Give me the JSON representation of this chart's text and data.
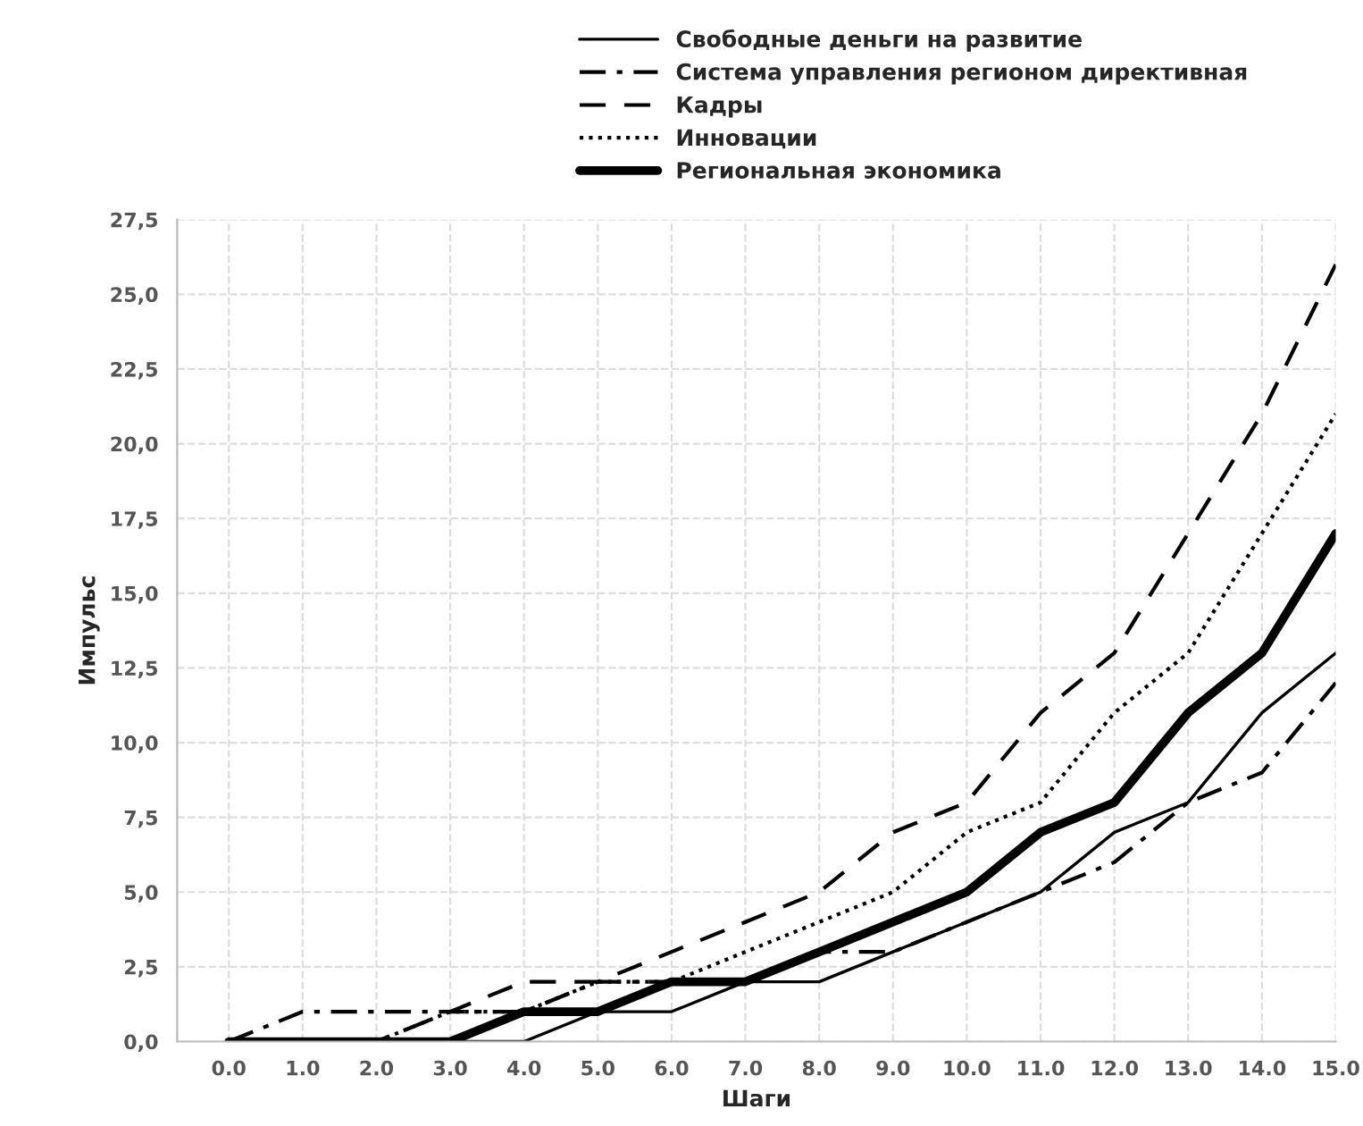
{
  "chart_data": {
    "type": "line",
    "xlabel": "Шаги",
    "ylabel": "Импульс",
    "x": [
      0,
      1,
      2,
      3,
      4,
      5,
      6,
      7,
      8,
      9,
      10,
      11,
      12,
      13,
      14,
      15
    ],
    "series": [
      {
        "name": "Свободные деньги на развитие",
        "color": "#000000",
        "line_style": "solid",
        "values": [
          0,
          0,
          0,
          0,
          0,
          1,
          1,
          2,
          2,
          3,
          4,
          5,
          7,
          8,
          11,
          13
        ]
      },
      {
        "name": "Система управления регионом директивная",
        "color": "#000000",
        "line_style": "dashdot",
        "values": [
          0,
          1,
          1,
          1,
          1,
          2,
          2,
          2,
          3,
          3,
          4,
          5,
          6,
          8,
          9,
          12
        ]
      },
      {
        "name": "Кадры",
        "color": "#000000",
        "line_style": "dashed",
        "values": [
          0,
          0,
          0,
          1,
          2,
          2,
          3,
          4,
          5,
          7,
          8,
          11,
          13,
          17,
          21,
          26
        ]
      },
      {
        "name": "Инновации",
        "color": "#000000",
        "line_style": "dotted",
        "values": [
          0,
          0,
          0,
          1,
          1,
          2,
          2,
          3,
          4,
          5,
          7,
          8,
          11,
          13,
          17,
          21
        ]
      },
      {
        "name": "Региональная экономика",
        "color": "#000000",
        "line_style": "solid",
        "values": [
          0,
          0,
          0,
          0,
          1,
          1,
          2,
          2,
          3,
          4,
          5,
          7,
          8,
          11,
          13,
          17
        ]
      }
    ],
    "xlim": [
      -0.7,
      15
    ],
    "xticks": [
      {
        "value": 0,
        "label": "0.0"
      },
      {
        "value": 1,
        "label": "1.0"
      },
      {
        "value": 2,
        "label": "2.0"
      },
      {
        "value": 3,
        "label": "3.0"
      },
      {
        "value": 4,
        "label": "4.0"
      },
      {
        "value": 5,
        "label": "5.0"
      },
      {
        "value": 6,
        "label": "6.0"
      },
      {
        "value": 7,
        "label": "7.0"
      },
      {
        "value": 8,
        "label": "8.0"
      },
      {
        "value": 9,
        "label": "9.0"
      },
      {
        "value": 10,
        "label": "10.0"
      },
      {
        "value": 11,
        "label": "11.0"
      },
      {
        "value": 12,
        "label": "12.0"
      },
      {
        "value": 13,
        "label": "13.0"
      },
      {
        "value": 14,
        "label": "14.0"
      },
      {
        "value": 15,
        "label": "15.0"
      }
    ],
    "ylim": [
      0,
      27.5
    ],
    "yticks": [
      {
        "value": 0,
        "label": "0,0"
      },
      {
        "value": 2.5,
        "label": "2,5"
      },
      {
        "value": 5,
        "label": "5,0"
      },
      {
        "value": 7.5,
        "label": "7,5"
      },
      {
        "value": 10,
        "label": "10,0"
      },
      {
        "value": 12.5,
        "label": "12,5"
      },
      {
        "value": 15,
        "label": "15,0"
      },
      {
        "value": 17.5,
        "label": "17,5"
      },
      {
        "value": 20,
        "label": "20,0"
      },
      {
        "value": 22.5,
        "label": "22,5"
      },
      {
        "value": 25,
        "label": "25,0"
      },
      {
        "value": 27.5,
        "label": "27,5"
      }
    ],
    "grid": true,
    "legend": "top",
    "marker": "none"
  }
}
